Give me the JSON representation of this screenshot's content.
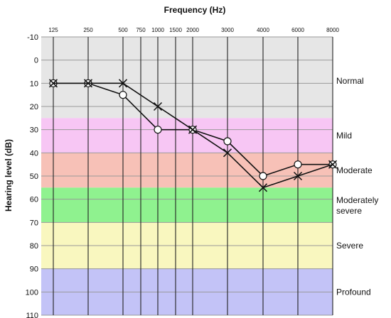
{
  "chart_data": {
    "type": "line",
    "title": "Frequency (Hz)",
    "xlabel": "Frequency (Hz)",
    "ylabel": "Hearing level (dB)",
    "x_ticks": [
      "125",
      "250",
      "500",
      "750",
      "1000",
      "1500",
      "2000",
      "3000",
      "4000",
      "6000",
      "8000"
    ],
    "y_ticks": [
      "-10",
      "0",
      "10",
      "20",
      "30",
      "40",
      "50",
      "60",
      "70",
      "80",
      "90",
      "100",
      "110"
    ],
    "ylim": [
      -10,
      110
    ],
    "y_inverted": true,
    "bands": [
      {
        "label": "Normal",
        "from": -10,
        "to": 25,
        "color": "#e6e6e6"
      },
      {
        "label": "Mild",
        "from": 25,
        "to": 40,
        "color": "#f7c6f4"
      },
      {
        "label": "Moderate",
        "from": 40,
        "to": 55,
        "color": "#f7c1b7"
      },
      {
        "label": "Moderately\nsevere",
        "from": 55,
        "to": 70,
        "color": "#8ff28f"
      },
      {
        "label": "Severe",
        "from": 70,
        "to": 90,
        "color": "#f9f7bf"
      },
      {
        "label": "Profound",
        "from": 90,
        "to": 110,
        "color": "#c3c3f7"
      }
    ],
    "series": [
      {
        "marker": "circle",
        "x": [
          "125",
          "250",
          "500",
          "1000",
          "2000",
          "3000",
          "4000",
          "6000",
          "8000"
        ],
        "values": [
          10,
          10,
          15,
          30,
          30,
          35,
          50,
          45,
          45
        ]
      },
      {
        "marker": "cross",
        "x": [
          "125",
          "250",
          "500",
          "1000",
          "2000",
          "3000",
          "4000",
          "6000",
          "8000"
        ],
        "values": [
          10,
          10,
          10,
          20,
          30,
          40,
          55,
          50,
          45
        ]
      }
    ],
    "grid": true
  }
}
